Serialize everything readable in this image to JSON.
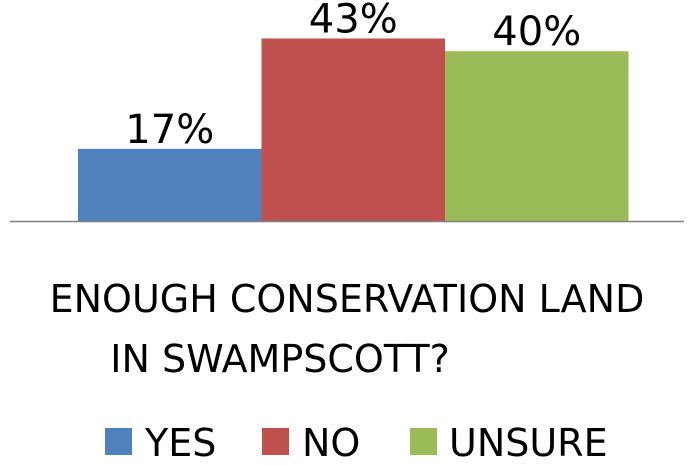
{
  "chart_data": {
    "type": "bar",
    "categories": [
      "YES",
      "NO",
      "UNSURE"
    ],
    "values": [
      17,
      43,
      40
    ],
    "data_labels": [
      "17%",
      "43%",
      "40%"
    ],
    "title_lines": [
      "ENOUGH CONSERVATION LAND",
      "IN SWAMPSCOTT?"
    ],
    "legend": [
      {
        "label": "YES",
        "color": "#4F81BD"
      },
      {
        "label": "NO",
        "color": "#C0504D"
      },
      {
        "label": "UNSURE",
        "color": "#9BBB59"
      }
    ],
    "colors": [
      "#4F81BD",
      "#C0504D",
      "#9BBB59"
    ],
    "ylim": [
      0,
      45
    ],
    "legend_position": "bottom",
    "grid": false
  }
}
